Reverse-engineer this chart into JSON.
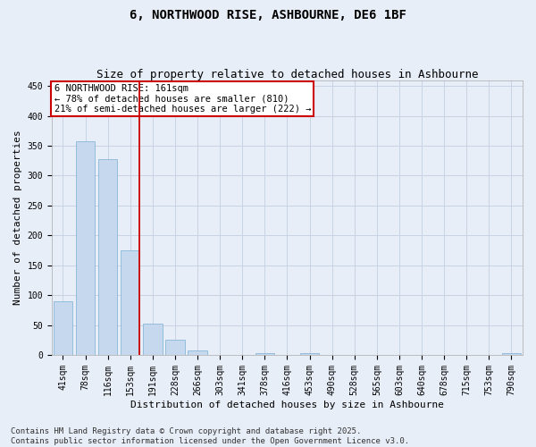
{
  "title_line1": "6, NORTHWOOD RISE, ASHBOURNE, DE6 1BF",
  "title_line2": "Size of property relative to detached houses in Ashbourne",
  "xlabel": "Distribution of detached houses by size in Ashbourne",
  "ylabel": "Number of detached properties",
  "categories": [
    "41sqm",
    "78sqm",
    "116sqm",
    "153sqm",
    "191sqm",
    "228sqm",
    "266sqm",
    "303sqm",
    "341sqm",
    "378sqm",
    "416sqm",
    "453sqm",
    "490sqm",
    "528sqm",
    "565sqm",
    "603sqm",
    "640sqm",
    "678sqm",
    "715sqm",
    "753sqm",
    "790sqm"
  ],
  "values": [
    90,
    357,
    328,
    175,
    52,
    25,
    8,
    0,
    0,
    3,
    0,
    3,
    0,
    0,
    0,
    0,
    0,
    0,
    0,
    0,
    3
  ],
  "bar_color": "#c5d8ed",
  "bar_edge_color": "#7aafd4",
  "grid_color": "#c8d4e4",
  "background_color": "#e8eef8",
  "annotation_box_color": "#ffffff",
  "annotation_border_color": "#cc0000",
  "red_line_color": "#cc0000",
  "annotation_text_line1": "6 NORTHWOOD RISE: 161sqm",
  "annotation_text_line2": "← 78% of detached houses are smaller (810)",
  "annotation_text_line3": "21% of semi-detached houses are larger (222) →",
  "annotation_fontsize": 7.5,
  "ylim": [
    0,
    460
  ],
  "yticks": [
    0,
    50,
    100,
    150,
    200,
    250,
    300,
    350,
    400,
    450
  ],
  "footer_line1": "Contains HM Land Registry data © Crown copyright and database right 2025.",
  "footer_line2": "Contains public sector information licensed under the Open Government Licence v3.0.",
  "title_fontsize": 10,
  "subtitle_fontsize": 9,
  "axis_label_fontsize": 8,
  "tick_fontsize": 7,
  "footer_fontsize": 6.5
}
